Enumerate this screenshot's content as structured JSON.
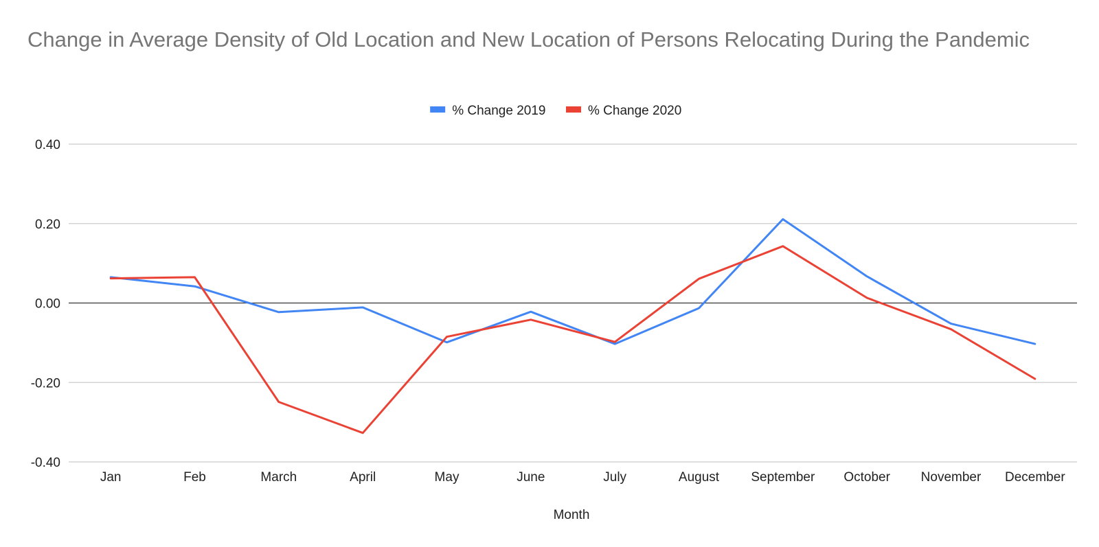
{
  "chart_data": {
    "type": "line",
    "title": "Change in Average Density of Old Location and New Location of Persons Relocating During the Pandemic",
    "xlabel": "Month",
    "ylabel": "",
    "categories": [
      "Jan",
      "Feb",
      "March",
      "April",
      "May",
      "June",
      "July",
      "August",
      "September",
      "October",
      "November",
      "December"
    ],
    "series": [
      {
        "name": "% Change 2019",
        "color": "#4285f4",
        "values": [
          0.065,
          0.042,
          -0.023,
          -0.011,
          -0.099,
          -0.022,
          -0.103,
          -0.013,
          0.211,
          0.067,
          -0.052,
          -0.103
        ]
      },
      {
        "name": "% Change 2020",
        "color": "#ea4335",
        "values": [
          0.062,
          0.065,
          -0.249,
          -0.327,
          -0.085,
          -0.042,
          -0.098,
          0.061,
          0.143,
          0.013,
          -0.066,
          -0.191
        ]
      }
    ],
    "ylim": [
      -0.4,
      0.4
    ],
    "yticks": [
      "0.40",
      "0.20",
      "0.00",
      "-0.20",
      "-0.40"
    ],
    "ytick_values": [
      0.4,
      0.2,
      0.0,
      -0.2,
      -0.4
    ],
    "grid": true,
    "legend": "top-center",
    "gridline_color": "#cccccc",
    "zero_line_color": "#333333"
  }
}
